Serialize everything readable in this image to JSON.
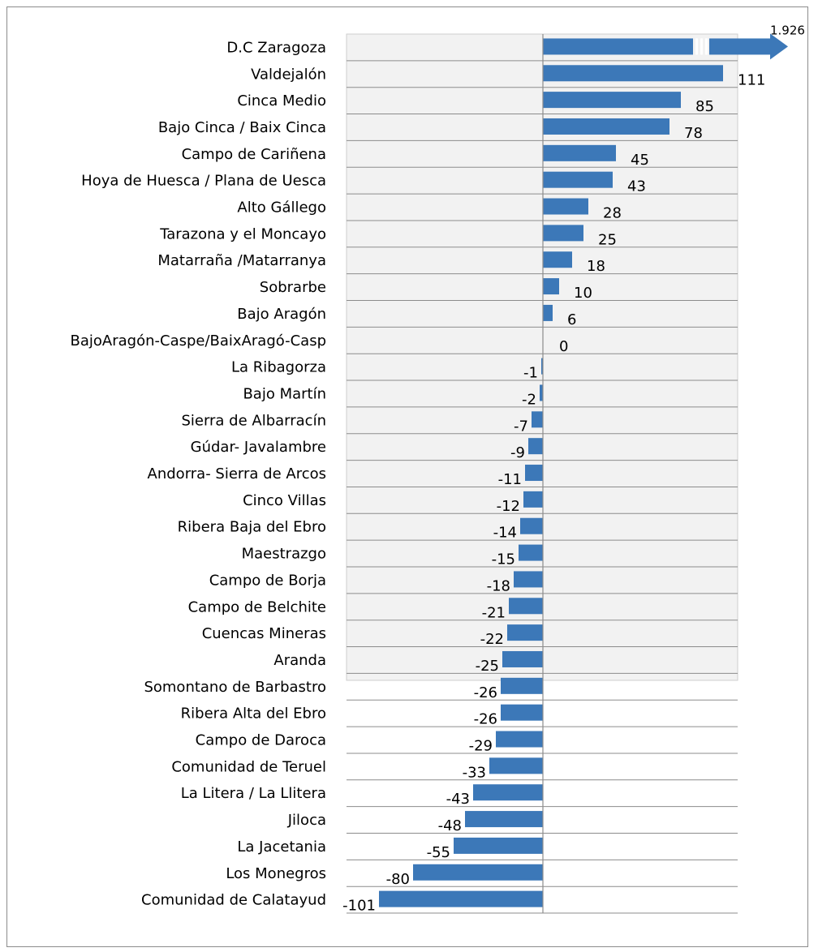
{
  "chart_data": {
    "type": "bar",
    "orientation": "horizontal",
    "categories": [
      "D.C Zaragoza",
      "Valdejalón",
      "Cinca Medio",
      "Bajo Cinca / Baix Cinca",
      "Campo de Cariñena",
      "Hoya de Huesca / Plana de Uesca",
      "Alto Gállego",
      "Tarazona y el Moncayo",
      "Matarraña /Matarranya",
      "Sobrarbe",
      "Bajo Aragón",
      "BajoAragón-Caspe/BaixAragó-Casp",
      "La Ribagorza",
      "Bajo Martín",
      "Sierra de Albarracín",
      "Gúdar- Javalambre",
      "Andorra- Sierra de Arcos",
      "Cinco Villas",
      "Ribera Baja del Ebro",
      "Maestrazgo",
      "Campo de Borja",
      "Campo de Belchite",
      "Cuencas Mineras",
      "Aranda",
      "Somontano de Barbastro",
      "Ribera Alta del Ebro",
      "Campo de Daroca",
      "Comunidad de Teruel",
      "La Litera / La Llitera",
      "Jiloca",
      "La Jacetania",
      "Los Monegros",
      "Comunidad de Calatayud"
    ],
    "values": [
      1926,
      111,
      85,
      78,
      45,
      43,
      28,
      25,
      18,
      10,
      6,
      0,
      -1,
      -2,
      -7,
      -9,
      -11,
      -12,
      -14,
      -15,
      -18,
      -21,
      -22,
      -25,
      -26,
      -26,
      -29,
      -33,
      -43,
      -48,
      -55,
      -80,
      -101
    ],
    "data_labels": [
      "1.926",
      "111",
      "85",
      "78",
      "45",
      "43",
      "28",
      "25",
      "18",
      "10",
      "6",
      "0",
      "-1",
      "-2",
      "-7",
      "-9",
      "-11",
      "-12",
      "-14",
      "-15",
      "-18",
      "-21",
      "-22",
      "-25",
      "-26",
      "-26",
      "-29",
      "-33",
      "-43",
      "-48",
      "-55",
      "-80",
      "-101"
    ],
    "xlim": [
      -120,
      120
    ],
    "truncated_value_note": "",
    "grid": "horizontal",
    "legend": "none",
    "colors": {
      "bar": "#3c78b8",
      "plot_bg": "#f2f2f2",
      "grid": "#8c8c8c"
    }
  }
}
